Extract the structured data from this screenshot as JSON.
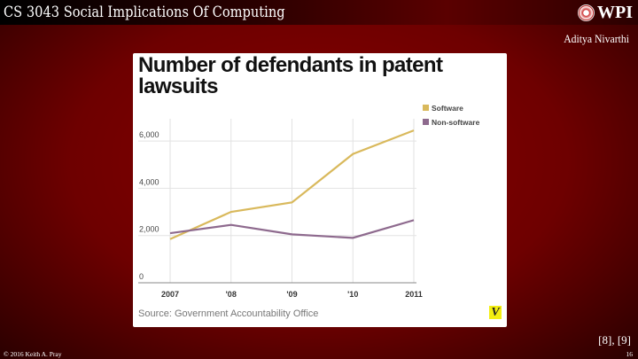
{
  "header": {
    "course_title": "CS 3043 Social Implications Of Computing",
    "logo_text": "WPI",
    "author": "Aditya Nivarthi"
  },
  "footer": {
    "copyright": "© 2016 Keith A. Pray",
    "page_number": "16",
    "citation": "[8], [9]"
  },
  "chart_data": {
    "type": "line",
    "title": "Number of defendants in patent lawsuits",
    "source": "Source: Government Accountability Office",
    "brand_mark": "V",
    "categories": [
      "2007",
      "'08",
      "'09",
      "'10",
      "2011"
    ],
    "yticks": [
      "0",
      "2,000",
      "4,000",
      "6,000"
    ],
    "ytick_values": [
      0,
      2000,
      4000,
      6000
    ],
    "ylim": [
      0,
      7000
    ],
    "grid": true,
    "legend_placement": "top-right",
    "series": [
      {
        "name": "Software",
        "color": "#d9b95c",
        "values": [
          1850,
          3000,
          3400,
          5450,
          6450
        ]
      },
      {
        "name": "Non-software",
        "color": "#8e6a8e",
        "values": [
          2100,
          2450,
          2050,
          1900,
          2650
        ]
      }
    ]
  }
}
